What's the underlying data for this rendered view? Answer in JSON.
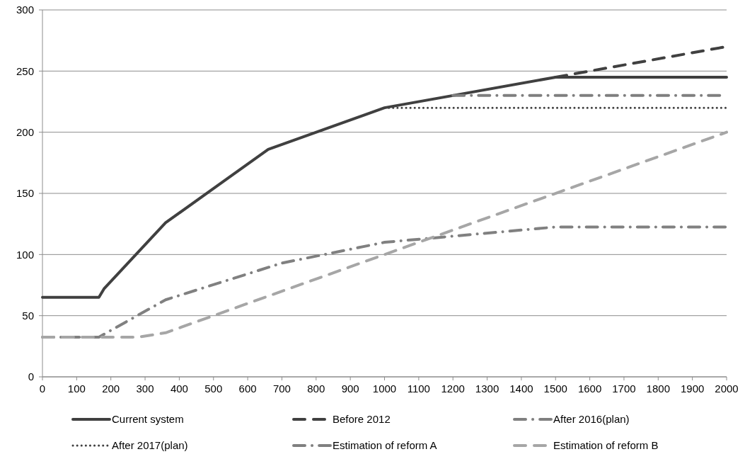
{
  "chart_data": {
    "type": "line",
    "xlim": [
      0,
      2000
    ],
    "xticks": [
      0,
      100,
      200,
      300,
      400,
      500,
      600,
      700,
      800,
      900,
      1000,
      1100,
      1200,
      1300,
      1400,
      1500,
      1600,
      1700,
      1800,
      1900,
      2000
    ],
    "ylim": [
      0,
      300
    ],
    "yticks": [
      0,
      50,
      100,
      150,
      200,
      250,
      300
    ],
    "grid": "y",
    "legend": "bottom",
    "series": [
      {
        "name": "Current system",
        "color": "#404040",
        "line_style": "solid",
        "x": [
          0,
          165,
          180,
          360,
          660,
          1000,
          1500,
          2000
        ],
        "values": [
          65,
          65,
          72,
          126,
          186,
          220,
          245,
          245
        ]
      },
      {
        "name": "Before 2012",
        "color": "#404040",
        "line_style": "dashed",
        "x": [
          1500,
          2000
        ],
        "values": [
          245,
          270
        ]
      },
      {
        "name": "After 2016(plan)",
        "color": "#7f7f7f",
        "line_style": "dashdot",
        "x": [
          1200,
          2000
        ],
        "values": [
          230,
          230
        ]
      },
      {
        "name": "After 2017(plan)",
        "color": "#404040",
        "line_style": "dotted",
        "x": [
          1000,
          2000
        ],
        "values": [
          220,
          220
        ]
      },
      {
        "name": "Estimation of reform A",
        "color": "#808080",
        "line_style": "dashdot",
        "x": [
          0,
          165,
          360,
          700,
          1000,
          1500,
          2000
        ],
        "values": [
          32.5,
          32.5,
          63,
          93,
          110,
          122.5,
          122.5
        ]
      },
      {
        "name": "Estimation of reform B",
        "color": "#a6a6a6",
        "line_style": "dashed",
        "x": [
          0,
          280,
          360,
          1000,
          2000
        ],
        "values": [
          32.5,
          32.5,
          36,
          100,
          200
        ]
      }
    ]
  }
}
